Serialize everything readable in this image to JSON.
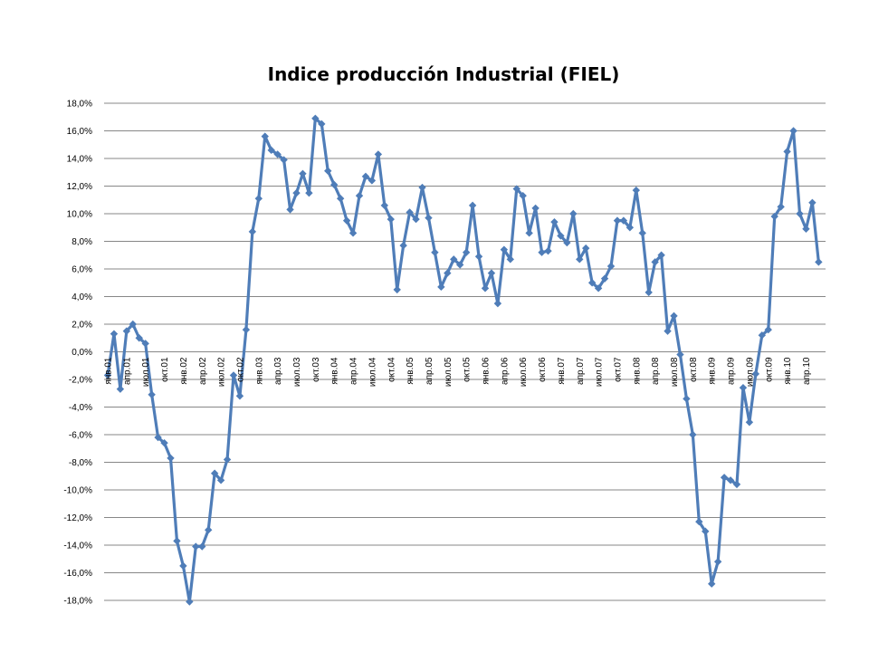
{
  "chart_data": {
    "type": "line",
    "title": "Indice producción Industrial (FIEL)",
    "xlabel": "",
    "ylabel": "",
    "ylim": [
      -18,
      18
    ],
    "y_ticks": [
      18,
      16,
      14,
      12,
      10,
      8,
      6,
      4,
      2,
      0,
      -2,
      -4,
      -6,
      -8,
      -10,
      -12,
      -14,
      -16,
      -18
    ],
    "y_tick_labels": [
      "18,0%",
      "16,0%",
      "14,0%",
      "12,0%",
      "10,0%",
      "8,0%",
      "6,0%",
      "4,0%",
      "2,0%",
      "0,0%",
      "-2,0%",
      "-4,0%",
      "-6,0%",
      "-8,0%",
      "-10,0%",
      "-12,0%",
      "-14,0%",
      "-16,0%",
      "-18,0%"
    ],
    "grid": true,
    "legend": "none",
    "x_tick_labels": [
      "янв.01",
      "апр.01",
      "июл.01",
      "окт.01",
      "янв.02",
      "апр.02",
      "июл.02",
      "окт.02",
      "янв.03",
      "апр.03",
      "июл.03",
      "окт.03",
      "янв.04",
      "апр.04",
      "июл.04",
      "окт.04",
      "янв.05",
      "апр.05",
      "июл.05",
      "окт.05",
      "янв.06",
      "апр.06",
      "июл.06",
      "окт.06",
      "янв.07",
      "апр.07",
      "июл.07",
      "окт.07",
      "янв.08",
      "апр.08",
      "июл.08",
      "окт.08",
      "янв.09",
      "апр.09",
      "июл.09",
      "окт.09",
      "янв.10",
      "апр.10"
    ],
    "x_tick_every": 3,
    "series": [
      {
        "color": "#4F7DB8",
        "values": [
          -1.7,
          1.3,
          -2.7,
          1.5,
          2.0,
          1.0,
          0.6,
          -3.1,
          -6.2,
          -6.6,
          -7.7,
          -13.7,
          -15.5,
          -18.1,
          -14.1,
          -14.1,
          -12.9,
          -8.8,
          -9.3,
          -7.8,
          -1.7,
          -3.2,
          1.6,
          8.7,
          11.1,
          15.6,
          14.6,
          14.3,
          13.9,
          10.3,
          11.5,
          12.9,
          11.5,
          16.9,
          16.5,
          13.1,
          12.1,
          11.1,
          9.5,
          8.6,
          11.3,
          12.7,
          12.4,
          14.3,
          10.6,
          9.6,
          4.5,
          7.7,
          10.1,
          9.6,
          11.9,
          9.7,
          7.2,
          4.7,
          5.7,
          6.7,
          6.3,
          7.2,
          10.6,
          6.9,
          4.6,
          5.7,
          3.5,
          7.4,
          6.7,
          11.8,
          11.3,
          8.6,
          10.4,
          7.2,
          7.3,
          9.4,
          8.4,
          7.9,
          10.0,
          6.7,
          7.5,
          5.0,
          4.6,
          5.3,
          6.2,
          9.5,
          9.5,
          9.0,
          11.7,
          8.6,
          4.3,
          6.5,
          7.0,
          1.5,
          2.6,
          -0.2,
          -3.4,
          -6.0,
          -12.3,
          -13.0,
          -16.8,
          -15.2,
          -9.1,
          -9.3,
          -9.6,
          -2.6,
          -5.1,
          -1.6,
          1.2,
          1.6,
          9.8,
          10.5,
          14.5,
          16.0,
          10.0,
          8.9,
          10.8,
          6.5
        ]
      }
    ]
  }
}
